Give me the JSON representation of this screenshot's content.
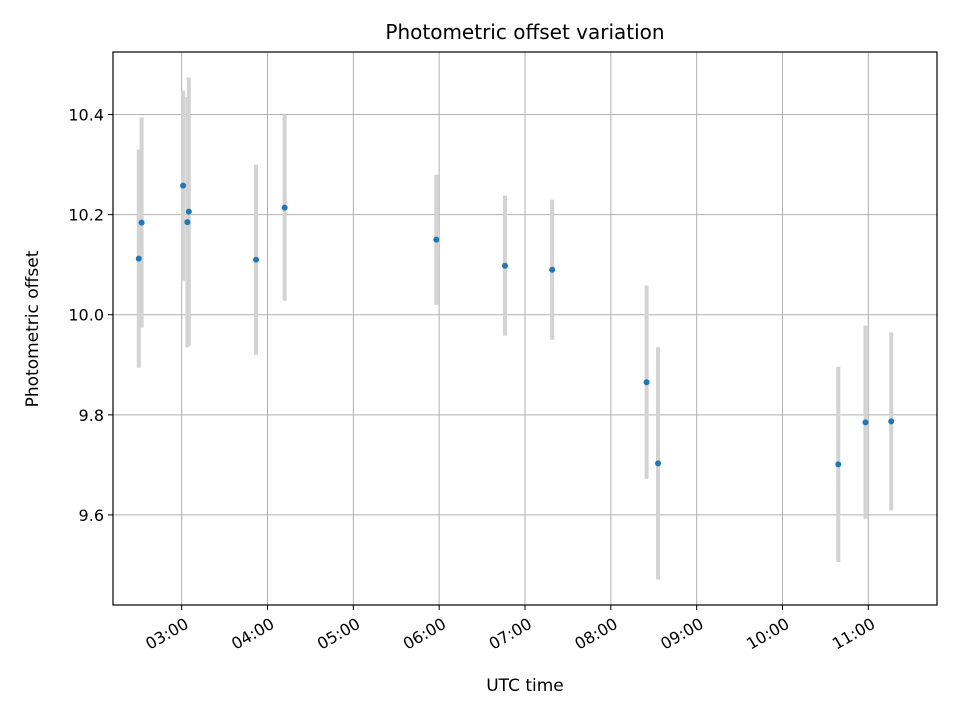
{
  "chart_data": {
    "type": "scatter",
    "title": "Photometric offset variation",
    "xlabel": "UTC time",
    "ylabel": "Photometric offset",
    "xlim": [
      "02:12",
      "11:48"
    ],
    "ylim": [
      9.42,
      10.525
    ],
    "x_ticks": [
      "03:00",
      "04:00",
      "05:00",
      "06:00",
      "07:00",
      "08:00",
      "09:00",
      "10:00",
      "11:00"
    ],
    "y_ticks": [
      9.6,
      9.8,
      10.0,
      10.2,
      10.4
    ],
    "grid": true,
    "legend": "none",
    "point_color": "#1f77b4",
    "errorbar_color": "#d3d3d3",
    "points": [
      {
        "x": "02:30",
        "y": 10.112,
        "err": 0.218
      },
      {
        "x": "02:32",
        "y": 10.184,
        "err": 0.21
      },
      {
        "x": "03:01",
        "y": 10.258,
        "err": 0.19
      },
      {
        "x": "03:04",
        "y": 10.185,
        "err": 0.25
      },
      {
        "x": "03:05",
        "y": 10.206,
        "err": 0.268
      },
      {
        "x": "03:52",
        "y": 10.11,
        "err": 0.19
      },
      {
        "x": "04:12",
        "y": 10.214,
        "err": 0.186
      },
      {
        "x": "05:58",
        "y": 10.15,
        "err": 0.13
      },
      {
        "x": "06:46",
        "y": 10.098,
        "err": 0.14
      },
      {
        "x": "07:19",
        "y": 10.09,
        "err": 0.14
      },
      {
        "x": "08:25",
        "y": 9.865,
        "err": 0.193
      },
      {
        "x": "08:33",
        "y": 9.703,
        "err": 0.232
      },
      {
        "x": "10:39",
        "y": 9.701,
        "err": 0.195
      },
      {
        "x": "10:58",
        "y": 9.785,
        "err": 0.193
      },
      {
        "x": "11:16",
        "y": 9.787,
        "err": 0.178
      }
    ]
  }
}
